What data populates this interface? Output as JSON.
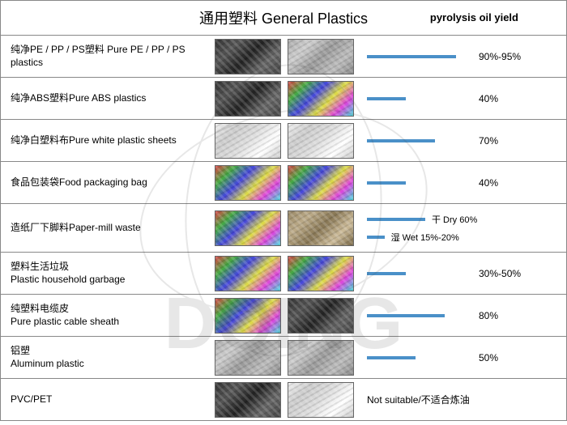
{
  "title": "通用塑料 General Plastics",
  "header_yield": "pyrolysis oil yield",
  "bar_color": "#4a90c8",
  "bar_max_width": 120,
  "rows": [
    {
      "label": "纯净PE / PP / PS塑料  Pure PE / PP / PS plastics",
      "yield": "90%-95%",
      "bar_pct": 92,
      "img1": "dark",
      "img2": "gray"
    },
    {
      "label": "纯净ABS塑料Pure ABS plastics",
      "yield": "40%",
      "bar_pct": 40,
      "img1": "dark",
      "img2": "colorful"
    },
    {
      "label": "纯净白塑料布Pure white plastic sheets",
      "yield": "70%",
      "bar_pct": 70,
      "img1": "white",
      "img2": "white"
    },
    {
      "label": "食品包装袋Food packaging bag",
      "yield": "40%",
      "bar_pct": 40,
      "img1": "colorful",
      "img2": "colorful"
    },
    {
      "label": "造纸厂下脚料Paper-mill waste",
      "yield_dry": "干 Dry 60%",
      "yield_wet": "湿 Wet 15%-20%",
      "bar_dry": 60,
      "bar_wet": 18,
      "img1": "colorful",
      "img2": "brown",
      "dual": true
    },
    {
      "label": "塑料生活垃圾\nPlastic household garbage",
      "yield": "30%-50%",
      "bar_pct": 40,
      "img1": "colorful",
      "img2": "colorful",
      "multiline": true
    },
    {
      "label": "纯塑料电缆皮\nPure plastic cable sheath",
      "yield": "80%",
      "bar_pct": 80,
      "img1": "colorful",
      "img2": "dark",
      "multiline": true
    },
    {
      "label": "铝塑\nAluminum plastic",
      "yield": "50%",
      "bar_pct": 50,
      "img1": "gray",
      "img2": "gray",
      "multiline": true
    },
    {
      "label": "PVC/PET",
      "yield_na": "Not suitable/不适合炼油",
      "img1": "dark",
      "img2": "white",
      "na": true
    }
  ]
}
